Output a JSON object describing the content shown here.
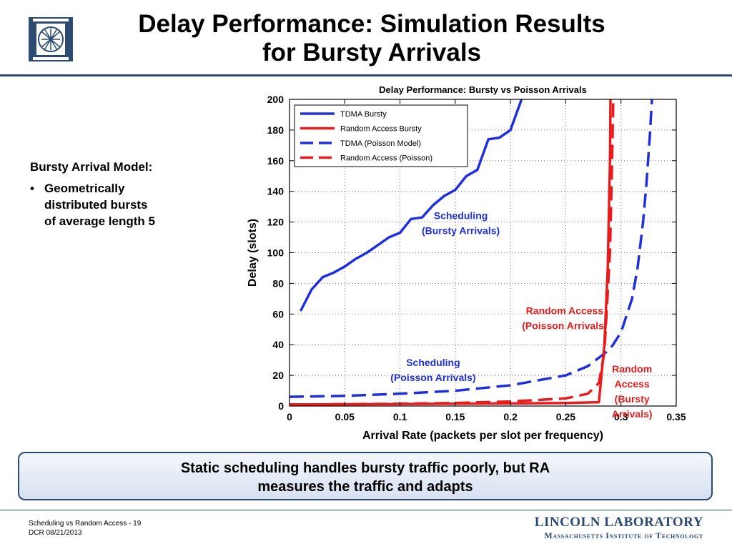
{
  "slide": {
    "title_lines": [
      "Delay Performance: Simulation Results",
      "for Bursty Arrivals"
    ],
    "logo_icon": "lincoln-lab-emblem-icon",
    "accent_color": "#2c4a72"
  },
  "left_panel": {
    "heading": "Bursty Arrival Model:",
    "bullet": "•",
    "bullet_lines": [
      "Geometrically",
      "distributed bursts",
      "of average length 5"
    ]
  },
  "callout": {
    "lines": [
      "Static scheduling handles bursty traffic poorly, but RA",
      "measures the traffic and adapts"
    ]
  },
  "footer": {
    "lines": [
      "Scheduling vs Random Access - 19",
      "DCR  08/21/2013"
    ],
    "lab_name": "LINCOLN LABORATORY",
    "lab_subtitle": "Massachusetts Institute of Technology"
  },
  "chart_data": {
    "type": "line",
    "title": "Delay Performance: Bursty vs Poisson Arrivals",
    "xlabel": "Arrival Rate (packets per slot per frequency)",
    "ylabel": "Delay (slots)",
    "xlim": [
      0,
      0.35
    ],
    "ylim": [
      0,
      200
    ],
    "xticks": [
      0,
      0.05,
      0.1,
      0.15,
      0.2,
      0.25,
      0.3,
      0.35
    ],
    "xtick_labels": [
      "0",
      "0.05",
      "0.1",
      "0.15",
      "0.2",
      "0.25",
      "0.3",
      "0.35"
    ],
    "yticks": [
      0,
      20,
      40,
      60,
      80,
      100,
      120,
      140,
      160,
      180,
      200
    ],
    "yticks_labels": [
      "0",
      "20",
      "40",
      "60",
      "80",
      "100",
      "120",
      "140",
      "160",
      "180",
      "200"
    ],
    "grid": true,
    "legend_position": "top-left",
    "series": [
      {
        "name": "TDMA Bursty",
        "color": "#1f2fe0",
        "dash": "solid",
        "x": [
          0.01,
          0.02,
          0.03,
          0.04,
          0.05,
          0.06,
          0.07,
          0.08,
          0.09,
          0.1,
          0.11,
          0.12,
          0.13,
          0.14,
          0.15,
          0.16,
          0.17,
          0.18,
          0.19,
          0.2,
          0.21
        ],
        "y": [
          62,
          76,
          84,
          87,
          91,
          96,
          100,
          105,
          110,
          113,
          122,
          123,
          131,
          137,
          141,
          150,
          154,
          174,
          175,
          180,
          200
        ]
      },
      {
        "name": "Random Access Bursty",
        "color": "#e81c1c",
        "dash": "solid",
        "x": [
          0,
          0.05,
          0.1,
          0.15,
          0.2,
          0.25,
          0.28,
          0.285,
          0.288,
          0.29,
          0.2905
        ],
        "y": [
          1,
          1.1,
          1.3,
          1.5,
          1.7,
          2,
          2.5,
          40,
          90,
          160,
          200
        ]
      },
      {
        "name": "TDMA (Poisson Model)",
        "color": "#1f2fe0",
        "dash": "dashed",
        "x": [
          0,
          0.05,
          0.1,
          0.15,
          0.2,
          0.25,
          0.27,
          0.29,
          0.3,
          0.31,
          0.315,
          0.32,
          0.323,
          0.326,
          0.328
        ],
        "y": [
          6,
          6.6,
          8,
          10,
          13.5,
          20,
          26,
          37,
          48,
          70,
          90,
          120,
          145,
          175,
          200
        ]
      },
      {
        "name": "Random Access (Poisson)",
        "color": "#e81c1c",
        "dash": "dashed",
        "x": [
          0,
          0.05,
          0.1,
          0.15,
          0.2,
          0.25,
          0.27,
          0.28,
          0.285,
          0.29,
          0.292,
          0.293
        ],
        "y": [
          1,
          1.2,
          1.5,
          2,
          3,
          5,
          8,
          15,
          35,
          100,
          160,
          200
        ]
      }
    ],
    "annotations": [
      {
        "lines": [
          "Scheduling",
          "(Bursty Arrivals)"
        ],
        "color": "#1f2fe0",
        "x": 0.155,
        "y": 122
      },
      {
        "lines": [
          "Random Access",
          "(Poisson Arrivals)"
        ],
        "color": "#e81c1c",
        "x": 0.249,
        "y": 60
      },
      {
        "lines": [
          "Scheduling",
          "(Poisson Arrivals)"
        ],
        "color": "#1f2fe0",
        "x": 0.13,
        "y": 26
      },
      {
        "lines": [
          "Random",
          "Access",
          "(Bursty",
          "Arrivals)"
        ],
        "color": "#e81c1c",
        "x": 0.31,
        "y": 22
      }
    ]
  }
}
